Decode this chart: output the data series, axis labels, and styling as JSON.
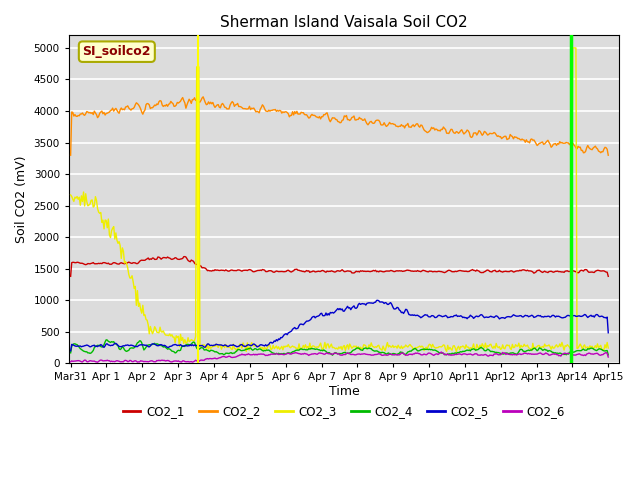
{
  "title": "Sherman Island Vaisala Soil CO2",
  "ylabel": "Soil CO2 (mV)",
  "xlabel": "Time",
  "watermark_text": "SI_soilco2",
  "ylim": [
    0,
    5200
  ],
  "yticks": [
    0,
    500,
    1000,
    1500,
    2000,
    2500,
    3000,
    3500,
    4000,
    4500,
    5000
  ],
  "background_color": "#dcdcdc",
  "line_colors": {
    "CO2_1": "#cc0000",
    "CO2_2": "#ff8c00",
    "CO2_3": "#eeee00",
    "CO2_4": "#00bb00",
    "CO2_5": "#0000cc",
    "CO2_6": "#bb00bb"
  },
  "vline_yellow_x": 3.55,
  "vline_green_x": 13.95,
  "x_start_day": -0.05,
  "x_end_day": 15.3,
  "xtick_labels": [
    "Mar 31",
    "Apr 1",
    "Apr 2",
    "Apr 3",
    "Apr 4",
    "Apr 5",
    "Apr 6",
    "Apr 7",
    "Apr 8",
    "Apr 9",
    "Apr 10",
    "Apr 11",
    "Apr 12",
    "Apr 13",
    "Apr 14",
    "Apr 15"
  ],
  "xtick_positions": [
    0,
    1,
    2,
    3,
    4,
    5,
    6,
    7,
    8,
    9,
    10,
    11,
    12,
    13,
    14,
    15
  ]
}
